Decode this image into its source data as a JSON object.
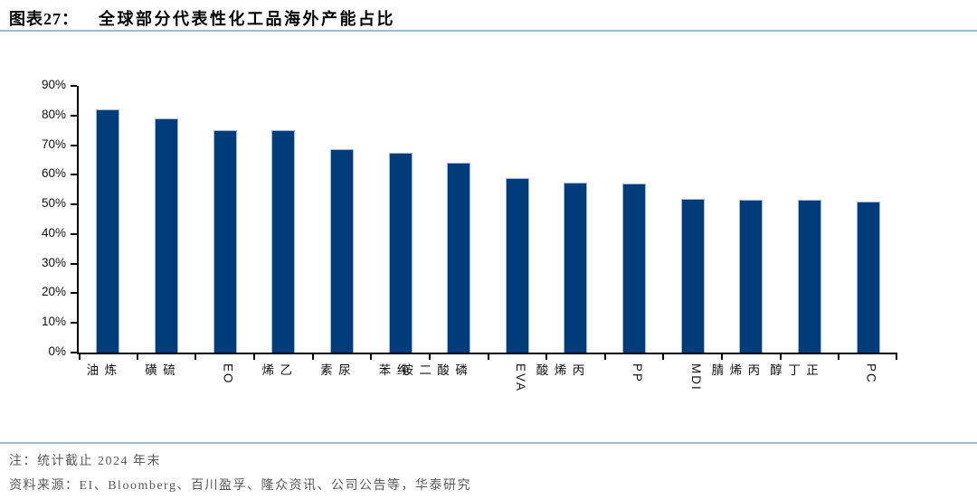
{
  "header": {
    "figure_label": "图表27：",
    "title": "全球部分代表性化工品海外产能占比"
  },
  "chart_data": {
    "type": "bar",
    "title": "全球部分代表性化工品海外产能占比",
    "categories": [
      "炼油",
      "硫磺",
      "EO",
      "乙烯",
      "尿素",
      "纯苯",
      "磷酸二铵",
      "EVA",
      "丙烯酸",
      "PP",
      "MDI",
      "丙烯腈",
      "正丁醇",
      "PC"
    ],
    "values": [
      82,
      79,
      75,
      75,
      68.5,
      67.5,
      64,
      59,
      57.5,
      57,
      52,
      51.5,
      51.5,
      51
    ],
    "xlabel": "",
    "ylabel": "",
    "ylim": [
      0,
      90
    ],
    "ytick_step": 10,
    "ytick_labels": [
      "0%",
      "10%",
      "20%",
      "30%",
      "40%",
      "50%",
      "60%",
      "70%",
      "80%",
      "90%"
    ],
    "grid": false,
    "legend": "none",
    "bar_color": "#003b7a",
    "bar_border_color": "#9fb8d8",
    "axis_color": "#000000"
  },
  "footer": {
    "note": "注：统计截止 2024 年末",
    "source": "资料来源：EI、Bloomberg、百川盈孚、隆众资讯、公司公告等，华泰研究"
  },
  "colors": {
    "rule_line": "#a4b6ca",
    "note_text": "#595959",
    "bar": "#003b7a"
  }
}
